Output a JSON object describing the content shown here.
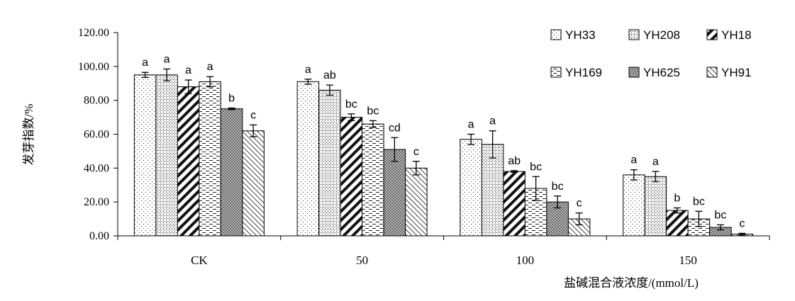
{
  "chart_data": {
    "type": "bar",
    "ylabel": "发芽指数/%",
    "xlabel": "盐碱混合液浓度/(mmol/L)",
    "ylim": [
      0,
      120
    ],
    "yticks": [
      "0.00",
      "20.00",
      "40.00",
      "60.00",
      "80.00",
      "100.00",
      "120.00"
    ],
    "categories": [
      "CK",
      "50",
      "100",
      "150"
    ],
    "legend_position": "top-right",
    "series": [
      {
        "name": "YH33",
        "pattern": "dots-sparse",
        "values": [
          95.0,
          91.0,
          57.0,
          36.0
        ],
        "errors": [
          1.5,
          1.5,
          3.0,
          3.0
        ],
        "letters": [
          "a",
          "a",
          "a",
          "a"
        ]
      },
      {
        "name": "YH208",
        "pattern": "dots-dense",
        "values": [
          95.0,
          86.0,
          54.0,
          35.0
        ],
        "errors": [
          3.5,
          3.0,
          8.0,
          3.0
        ],
        "letters": [
          "a",
          "ab",
          "a",
          "a"
        ]
      },
      {
        "name": "YH18",
        "pattern": "diag-thick",
        "values": [
          88.0,
          70.0,
          38.0,
          15.0
        ],
        "errors": [
          4.0,
          2.0,
          0.5,
          1.5
        ],
        "letters": [
          "a",
          "bc",
          "ab",
          "b"
        ]
      },
      {
        "name": "YH169",
        "pattern": "dashes",
        "values": [
          91.0,
          66.0,
          28.0,
          10.0
        ],
        "errors": [
          3.0,
          2.0,
          7.0,
          4.5
        ],
        "letters": [
          "a",
          "bc",
          "bc",
          "bc"
        ]
      },
      {
        "name": "YH625",
        "pattern": "grid",
        "values": [
          75.0,
          51.0,
          20.0,
          5.0
        ],
        "errors": [
          0.5,
          7.0,
          3.5,
          1.5
        ],
        "letters": [
          "b",
          "cd",
          "bc",
          "bc"
        ]
      },
      {
        "name": "YH91",
        "pattern": "diag-thin",
        "values": [
          62.0,
          40.0,
          10.0,
          1.0
        ],
        "errors": [
          3.5,
          4.0,
          3.5,
          0.5
        ],
        "letters": [
          "c",
          "c",
          "c",
          "c"
        ]
      }
    ]
  }
}
